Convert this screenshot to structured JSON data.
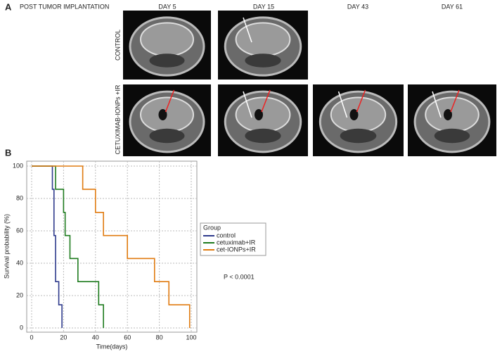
{
  "panel_a": {
    "label": "A",
    "title": "POST TUMOR IMPLANTATION",
    "columns": [
      "DAY 5",
      "DAY 15",
      "DAY 43",
      "DAY 61"
    ],
    "rows": [
      "CONTROL",
      "CETUXIMAB-IONPs +IR"
    ]
  },
  "chart_data": {
    "type": "step",
    "panel_label": "B",
    "x_label": "Time(days)",
    "y_label": "Survival probability (%)",
    "xlim": [
      0,
      100
    ],
    "ylim": [
      0,
      100
    ],
    "xticks": [
      0,
      20,
      40,
      60,
      80,
      100
    ],
    "yticks": [
      0,
      20,
      40,
      60,
      80,
      100
    ],
    "grid": true,
    "legend_title": "Group",
    "annotation": "P < 0.0001",
    "series": [
      {
        "name": "control",
        "color": "#2e3a8c",
        "x": [
          0,
          13,
          13,
          14,
          14,
          15,
          15,
          17,
          17,
          19,
          19
        ],
        "values": [
          100,
          100,
          85.7,
          85.7,
          57.1,
          57.1,
          28.6,
          28.6,
          14.3,
          14.3,
          0
        ]
      },
      {
        "name": "cetuximab+IR",
        "color": "#1e7b1e",
        "x": [
          0,
          15,
          15,
          20,
          20,
          21,
          21,
          24,
          24,
          29,
          29,
          42,
          42,
          45,
          45
        ],
        "values": [
          100,
          100,
          85.7,
          85.7,
          71.4,
          71.4,
          57.1,
          57.1,
          42.9,
          42.9,
          28.6,
          28.6,
          14.3,
          14.3,
          0
        ]
      },
      {
        "name": "cet-IONPs+IR",
        "color": "#e07b10",
        "x": [
          0,
          32,
          32,
          40,
          40,
          45,
          45,
          60,
          60,
          77,
          77,
          86,
          86,
          99,
          99
        ],
        "values": [
          100,
          100,
          85.7,
          85.7,
          71.4,
          71.4,
          57.1,
          57.1,
          42.9,
          42.9,
          28.6,
          28.6,
          14.3,
          14.3,
          0
        ]
      }
    ]
  }
}
